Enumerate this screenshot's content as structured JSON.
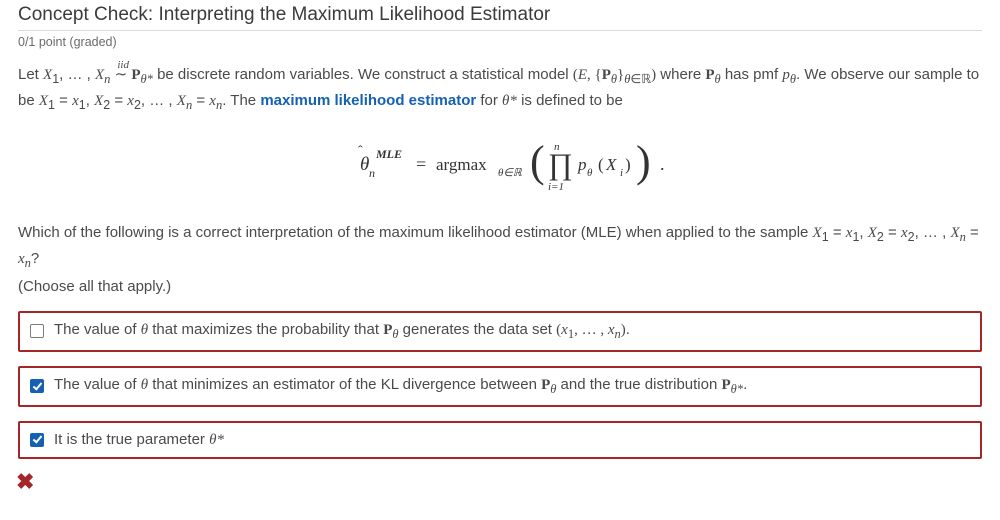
{
  "title": "Concept Check: Interpreting the Maximum Likelihood Estimator",
  "points_line": "0/1 point (graded)",
  "intro_html": "Let <span class='math-ital'>X</span><sub>1</sub>, … , <span class='math-ital'>X<sub>n</sub></span> <span class='math-ser' style='position:relative;'><span style='position:absolute;top:-0.95em;left:0.25em;font-style:italic;font-size:11px;'>iid</span>&#8764;</span> <span class='math-ser'><b>P</b></span><sub><span class='math-ital'>θ*</span></sub> be discrete random variables. We construct a statistical model <span class='math-ser'>(<span class='math-ital'>E</span>, {<b>P</b><sub><span class='math-ital'>θ</span></sub>}<sub><span class='math-ital'>θ</span>∈ℝ</sub>)</span> where <span class='math-ser'><b>P</b><sub><span class='math-ital'>θ</span></sub></span> has pmf <span class='math-ital'>p<sub>θ</sub></span>. We observe our sample to be <span class='math-ital'>X</span><sub>1</sub> = <span class='math-ital'>x</span><sub>1</sub>, <span class='math-ital'>X</span><sub>2</sub> = <span class='math-ital'>x</span><sub>2</sub>, … , <span class='math-ital'>X<sub>n</sub></span> = <span class='math-ital'>x<sub>n</sub></span>. The <span class='mle-link'>maximum likelihood estimator</span> for <span class='math-ital'>θ*</span> is defined to be",
  "question_html": "Which of the following is a correct interpretation of the maximum likelihood estimator (MLE) when applied to the sample <span class='math-ital'>X</span><sub>1</sub> = <span class='math-ital'>x</span><sub>1</sub>, <span class='math-ital'>X</span><sub>2</sub> = <span class='math-ital'>x</span><sub>2</sub>, … , <span class='math-ital'>X<sub>n</sub></span> = <span class='math-ital'>x<sub>n</sub></span>?",
  "choose_hint": "(Choose all that apply.)",
  "options": [
    {
      "checked": false,
      "html": "The value of <span class='math-ital'>θ</span> that maximizes the probability that <span class='math-ser'><b>P</b><sub><span class='math-ital'>θ</span></sub></span> generates the data set <span class='math-ser'>(<span class='math-ital'>x</span><sub>1</sub>, … , <span class='math-ital'>x<sub>n</sub></span>)</span>."
    },
    {
      "checked": true,
      "html": "The value of <span class='math-ital'>θ</span> that minimizes an estimator of the KL divergence between <span class='math-ser'><b>P</b><sub><span class='math-ital'>θ</span></sub></span> and the true distribution <span class='math-ser'><b>P</b><sub><span class='math-ital'>θ*</span></sub></span>."
    },
    {
      "checked": true,
      "html": "It is the true parameter <span class='math-ital'>θ*</span>"
    }
  ],
  "result_icon": "✖",
  "colors": {
    "border_incorrect": "#a42626",
    "link": "#1461b4",
    "checkbox_checked": "#1461b4"
  }
}
